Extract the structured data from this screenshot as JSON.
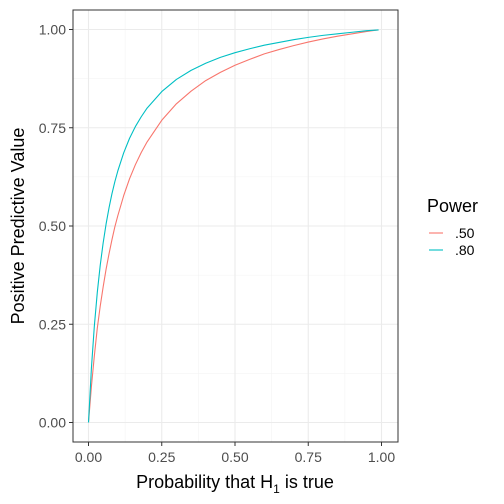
{
  "chart_data": {
    "type": "line",
    "xlabel": "Probability that H",
    "xlabel_subscript": "1",
    "xlabel_suffix": " is true",
    "ylabel": "Positive Predictive Value",
    "xlim": [
      0,
      1
    ],
    "ylim": [
      0,
      1
    ],
    "x_ticks": [
      0,
      0.25,
      0.5,
      0.75,
      1
    ],
    "x_tick_labels": [
      "0.00",
      "0.25",
      "0.50",
      "0.75",
      "1.00"
    ],
    "y_ticks": [
      0,
      0.25,
      0.5,
      0.75,
      1
    ],
    "y_tick_labels": [
      "0.00",
      "0.25",
      "0.50",
      "0.75",
      "1.00"
    ],
    "grid": true,
    "legend": {
      "title": "Power",
      "position": "right",
      "entries": [
        ".50",
        ".80"
      ]
    },
    "x": [
      0.0,
      0.01,
      0.02,
      0.03,
      0.04,
      0.05,
      0.06,
      0.07,
      0.08,
      0.09,
      0.1,
      0.12,
      0.14,
      0.16,
      0.18,
      0.2,
      0.25,
      0.3,
      0.35,
      0.4,
      0.45,
      0.5,
      0.55,
      0.6,
      0.65,
      0.7,
      0.75,
      0.8,
      0.85,
      0.9,
      0.95,
      0.99
    ],
    "series": [
      {
        "name": ".50",
        "color": "#f8766d",
        "values": [
          0.0,
          0.092,
          0.17,
          0.24,
          0.296,
          0.345,
          0.39,
          0.429,
          0.465,
          0.498,
          0.526,
          0.577,
          0.62,
          0.656,
          0.687,
          0.714,
          0.769,
          0.811,
          0.843,
          0.87,
          0.891,
          0.909,
          0.924,
          0.938,
          0.949,
          0.959,
          0.968,
          0.976,
          0.983,
          0.989,
          0.995,
          0.999
        ]
      },
      {
        "name": ".80",
        "color": "#00bfc4",
        "values": [
          0.0,
          0.139,
          0.246,
          0.331,
          0.4,
          0.457,
          0.505,
          0.546,
          0.582,
          0.613,
          0.64,
          0.686,
          0.723,
          0.753,
          0.778,
          0.8,
          0.842,
          0.873,
          0.896,
          0.914,
          0.929,
          0.941,
          0.951,
          0.96,
          0.967,
          0.974,
          0.98,
          0.985,
          0.989,
          0.993,
          0.997,
          0.999
        ]
      }
    ]
  }
}
